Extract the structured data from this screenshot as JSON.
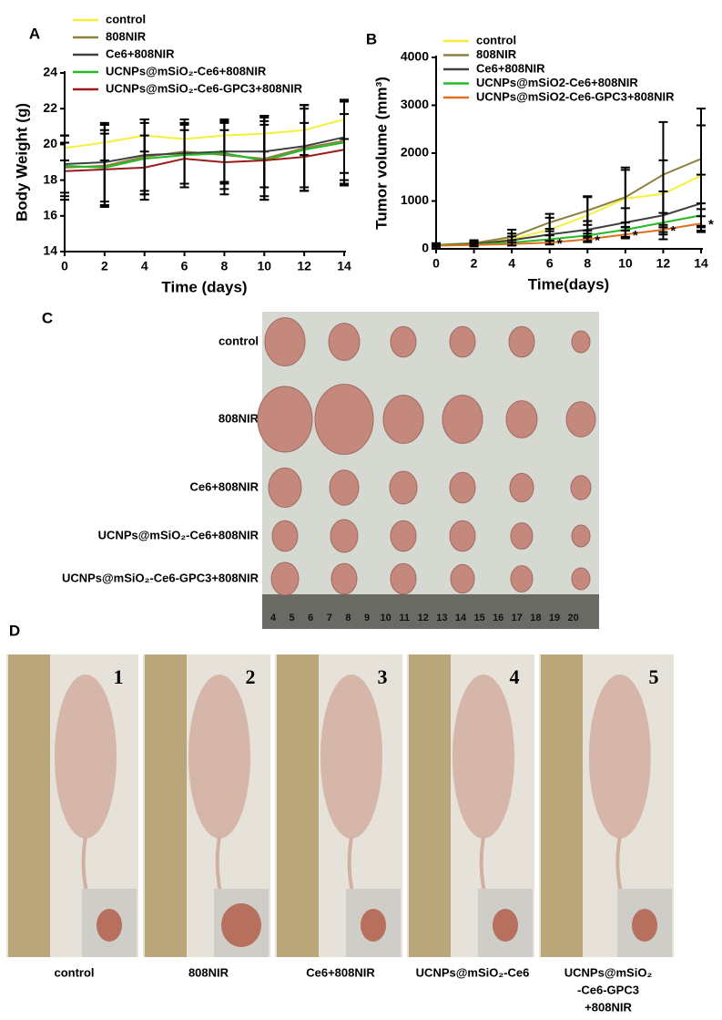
{
  "chart_data": [
    {
      "type": "line",
      "panel_label": "A",
      "x_label": "Time (days)",
      "y_label": "Body Weight (g)",
      "x": [
        0,
        2,
        4,
        6,
        8,
        10,
        12,
        14
      ],
      "xlim": [
        0,
        14
      ],
      "xticks": [
        0,
        2,
        4,
        6,
        8,
        10,
        12,
        14
      ],
      "ylim": [
        14,
        24
      ],
      "yticks": [
        14,
        16,
        18,
        20,
        22,
        24
      ],
      "grid": false,
      "series": [
        {
          "name": "control",
          "color": "#f5ef3a",
          "values": [
            19.8,
            20.1,
            20.5,
            20.3,
            20.5,
            20.6,
            20.8,
            21.4
          ],
          "errors": [
            0.7,
            1.0,
            0.9,
            0.8,
            0.9,
            1.0,
            1.4,
            1.1
          ]
        },
        {
          "name": "808NIR",
          "color": "#8c8040",
          "values": [
            18.7,
            18.8,
            19.3,
            19.6,
            19.4,
            19.2,
            19.8,
            20.2
          ],
          "errors": [
            1.8,
            2.3,
            2.1,
            1.8,
            1.9,
            2.3,
            2.4,
            2.2
          ]
        },
        {
          "name": "Ce6+808NIR",
          "color": "#404040",
          "values": [
            18.9,
            19.0,
            19.4,
            19.5,
            19.6,
            19.6,
            19.9,
            20.4
          ],
          "errors": [
            1.6,
            2.2,
            2.0,
            1.7,
            1.7,
            2.0,
            2.3,
            2.0
          ]
        },
        {
          "name": "UCNPs@mSiO₂-Ce6+808NIR",
          "color": "#22bb22",
          "values": [
            18.8,
            18.7,
            19.2,
            19.4,
            19.5,
            19.1,
            19.7,
            20.1
          ],
          "errors": [
            1.7,
            2.1,
            2.0,
            1.8,
            1.7,
            2.2,
            2.3,
            2.3
          ]
        },
        {
          "name": "UCNPs@mSiO₂-Ce6-GPC3+808NIR",
          "color": "#9b1b1b",
          "values": [
            18.5,
            18.6,
            18.7,
            19.2,
            19.0,
            19.1,
            19.3,
            19.7
          ],
          "errors": [
            1.6,
            2.0,
            1.8,
            1.6,
            1.8,
            2.0,
            1.9,
            2.0
          ]
        }
      ]
    },
    {
      "type": "line",
      "panel_label": "B",
      "x_label": "Time(days)",
      "y_label": "Tumor volume (mm³)",
      "x": [
        0,
        2,
        4,
        6,
        8,
        10,
        12,
        14
      ],
      "xlim": [
        0,
        14
      ],
      "xticks": [
        0,
        2,
        4,
        6,
        8,
        10,
        12,
        14
      ],
      "ylim": [
        0,
        4000
      ],
      "yticks": [
        0,
        1000,
        2000,
        3000,
        4000
      ],
      "grid": false,
      "significance": {
        "x": [
          6,
          8,
          10,
          12,
          14
        ],
        "label": "*"
      },
      "series": [
        {
          "name": "control",
          "color": "#f5ef3a",
          "values": [
            80,
            100,
            200,
            400,
            700,
            1050,
            1150,
            1530
          ],
          "errors": [
            30,
            50,
            120,
            250,
            380,
            600,
            700,
            1050
          ]
        },
        {
          "name": "808NIR",
          "color": "#8c8040",
          "values": [
            80,
            120,
            250,
            550,
            800,
            1080,
            1550,
            1880
          ],
          "errors": [
            40,
            60,
            150,
            180,
            300,
            620,
            1100,
            1050
          ]
        },
        {
          "name": "Ce6+808NIR",
          "color": "#404040",
          "values": [
            80,
            100,
            180,
            300,
            400,
            550,
            700,
            950
          ],
          "errors": [
            30,
            40,
            80,
            120,
            180,
            300,
            500,
            600
          ]
        },
        {
          "name": "UCNPs@mSiO2-Ce6+808NIR",
          "color": "#22bb22",
          "values": [
            80,
            90,
            130,
            200,
            280,
            400,
            550,
            700
          ],
          "errors": [
            20,
            30,
            50,
            80,
            100,
            150,
            200,
            250
          ]
        },
        {
          "name": "UCNPs@mSiO2-Ce6-GPC3+808NIR",
          "color": "#e07020",
          "values": [
            70,
            80,
            100,
            130,
            200,
            300,
            400,
            530
          ],
          "errors": [
            20,
            20,
            30,
            40,
            60,
            80,
            100,
            150
          ]
        }
      ]
    }
  ],
  "tumor_photo": {
    "panel_label": "C",
    "row_labels": [
      "control",
      "808NIR",
      "Ce6+808NIR",
      "UCNPs@mSiO₂-Ce6+808NIR",
      "UCNPs@mSiO₂-Ce6-GPC3+808NIR"
    ],
    "ruler_labels": [
      "4",
      "5",
      "6",
      "7",
      "8",
      "9",
      "10",
      "11",
      "12",
      "13",
      "14",
      "15",
      "16",
      "17",
      "18",
      "19",
      "20"
    ]
  },
  "mouse_photos": {
    "panel_label": "D",
    "numbers": [
      "1",
      "2",
      "3",
      "4",
      "5"
    ],
    "captions": [
      [
        "control"
      ],
      [
        "808NIR"
      ],
      [
        "Ce6+808NIR"
      ],
      [
        "UCNPs@mSiO₂-Ce6"
      ],
      [
        "UCNPs@mSiO₂",
        "-Ce6-GPC3",
        "+808NIR"
      ]
    ]
  }
}
